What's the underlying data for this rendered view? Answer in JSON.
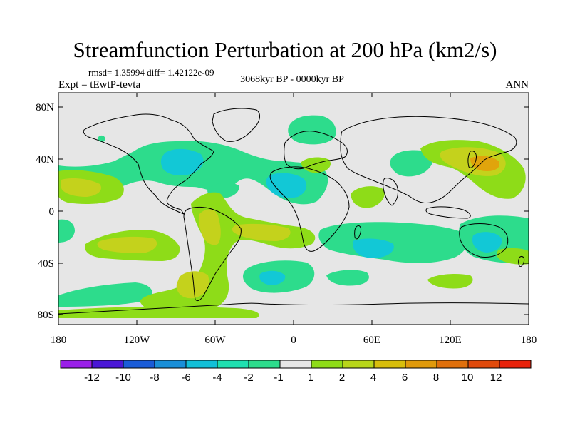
{
  "title": "Streamfunction Perturbation at 200 hPa (km2/s)",
  "stats": "rmsd= 1.35994 diff= 1.42122e-09",
  "period": "3068kyr BP - 0000kyr BP",
  "experiment": "Expt = tEwtP-tevta",
  "season": "ANN",
  "map": {
    "x_tick_labels": [
      "180",
      "120W",
      "60W",
      "0",
      "60E",
      "120E",
      "180"
    ],
    "y_tick_labels": [
      "80N",
      "40N",
      "0",
      "40S",
      "80S"
    ]
  },
  "colorbar": {
    "labels": [
      "-12",
      "-10",
      "-8",
      "-6",
      "-4",
      "-2",
      "-1",
      "1",
      "2",
      "4",
      "6",
      "8",
      "10",
      "12"
    ],
    "colors": [
      "#9a1fe8",
      "#4a16d6",
      "#1a5cd8",
      "#1a8fd8",
      "#12c0d8",
      "#1ee0b0",
      "#2ddc8c",
      "#e6e6e6",
      "#8edc18",
      "#b8d61a",
      "#d8be0c",
      "#e09a0c",
      "#e0700c",
      "#e04a0c",
      "#e8220a"
    ]
  },
  "color_scale": {
    "neutral": "#e6e6e6",
    "neg1": "#2ddc8c",
    "neg2": "#12c8d6",
    "pos1": "#8edc18",
    "pos2": "#c4d21c",
    "pos3": "#e0a40c"
  }
}
